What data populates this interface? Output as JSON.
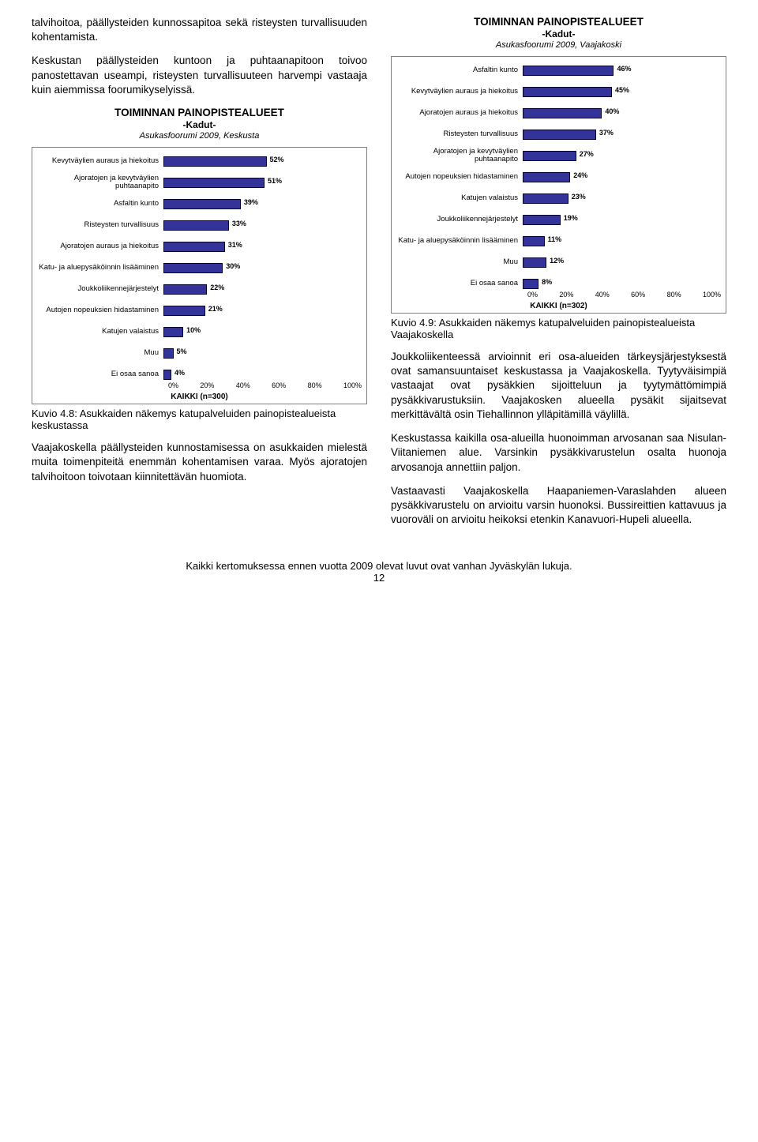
{
  "left": {
    "para1": "talvihoitoa, päällysteiden kunnossapitoa sekä risteysten turvallisuuden kohentamista.",
    "para2": "Keskustan päällysteiden kuntoon ja puhtaanapitoon toivoo panostettavan useampi, risteysten turvallisuuteen harvempi vastaaja kuin aiemmissa foorumikyselyissä.",
    "chart": {
      "type": "bar",
      "title": "TOIMINNAN PAINOPISTEALUEET",
      "subtitle": "-Kadut-",
      "subtitle2": "Asukasfoorumi 2009, Keskusta",
      "bar_color": "#333399",
      "border_color": "#808080",
      "bg": "#ffffff",
      "xlim": [
        0,
        100
      ],
      "xticks": [
        "0%",
        "20%",
        "40%",
        "60%",
        "80%",
        "100%"
      ],
      "footer": "KAIKKI (n=300)",
      "items": [
        {
          "label": "Kevytväylien auraus ja hiekoitus",
          "value": 52
        },
        {
          "label": "Ajoratojen ja kevytväylien puhtaanapito",
          "value": 51
        },
        {
          "label": "Asfaltin kunto",
          "value": 39
        },
        {
          "label": "Risteysten turvallisuus",
          "value": 33
        },
        {
          "label": "Ajoratojen auraus ja hiekoitus",
          "value": 31
        },
        {
          "label": "Katu- ja aluepysäköinnin lisääminen",
          "value": 30
        },
        {
          "label": "Joukkoliikennejärjestelyt",
          "value": 22
        },
        {
          "label": "Autojen nopeuksien hidastaminen",
          "value": 21
        },
        {
          "label": "Katujen valaistus",
          "value": 10
        },
        {
          "label": "Muu",
          "value": 5
        },
        {
          "label": "Ei osaa sanoa",
          "value": 4
        }
      ]
    },
    "caption": "Kuvio 4.8: Asukkaiden näkemys katupalveluiden painopistealueista keskustassa",
    "para3": "Vaajakoskella päällysteiden kunnostamisessa on asukkaiden mielestä muita toimenpiteitä enemmän kohentamisen varaa. Myös ajoratojen talvihoitoon toivotaan kiinnitettävän huomiota."
  },
  "right": {
    "chart": {
      "type": "bar",
      "title": "TOIMINNAN PAINOPISTEALUEET",
      "subtitle": "-Kadut-",
      "subtitle2": "Asukasfoorumi 2009, Vaajakoski",
      "bar_color": "#333399",
      "border_color": "#808080",
      "bg": "#ffffff",
      "xlim": [
        0,
        100
      ],
      "xticks": [
        "0%",
        "20%",
        "40%",
        "60%",
        "80%",
        "100%"
      ],
      "footer": "KAIKKI (n=302)",
      "items": [
        {
          "label": "Asfaltin kunto",
          "value": 46
        },
        {
          "label": "Kevytväylien auraus ja hiekoitus",
          "value": 45
        },
        {
          "label": "Ajoratojen auraus ja hiekoitus",
          "value": 40
        },
        {
          "label": "Risteysten turvallisuus",
          "value": 37
        },
        {
          "label": "Ajoratojen ja kevytväylien puhtaanapito",
          "value": 27
        },
        {
          "label": "Autojen nopeuksien hidastaminen",
          "value": 24
        },
        {
          "label": "Katujen valaistus",
          "value": 23
        },
        {
          "label": "Joukkoliikennejärjestelyt",
          "value": 19
        },
        {
          "label": "Katu- ja aluepysäköinnin lisääminen",
          "value": 11
        },
        {
          "label": "Muu",
          "value": 12
        },
        {
          "label": "Ei osaa sanoa",
          "value": 8
        }
      ]
    },
    "caption": "Kuvio 4.9: Asukkaiden näkemys katupalveluiden painopistealueista Vaajakoskella",
    "para1": "Joukkoliikenteessä arvioinnit eri osa-alueiden tärkeysjärjestyksestä ovat samansuuntaiset keskustassa ja Vaajakoskella. Tyytyväisimpiä vastaajat ovat pysäkkien sijoitteluun ja tyytymättömimpiä pysäkkivarustuksiin. Vaajakosken alueella pysäkit sijaitsevat merkittävältä osin Tiehallinnon ylläpitämillä väylillä.",
    "para2": "Keskustassa kaikilla osa-alueilla huonoimman arvosanan saa Nisulan-Viitaniemen alue. Varsinkin pysäkkivarustelun osalta huonoja arvosanoja annettiin paljon.",
    "para3": "Vastaavasti Vaajakoskella Haapaniemen-Varaslahden alueen pysäkkivarustelu on arvioitu varsin huonoksi. Bussireittien kattavuus ja vuoroväli on arvioitu heikoksi etenkin Kanavuori-Hupeli alueella."
  },
  "footer_line1": "Kaikki kertomuksessa ennen vuotta 2009 olevat luvut ovat vanhan Jyväskylän lukuja.",
  "footer_line2": "12"
}
